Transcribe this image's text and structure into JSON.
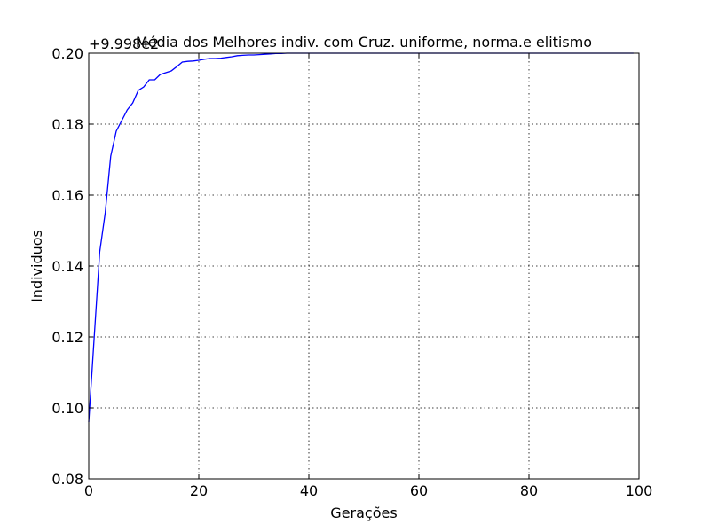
{
  "chart_data": {
    "type": "line",
    "title": "Média dos Melhores indiv. com Cruz. uniforme, norma.e elitismo",
    "xlabel": "Gerações",
    "ylabel": "Individuos",
    "offset_label": "+9.998e2",
    "xlim": [
      0,
      100
    ],
    "ylim": [
      0.08,
      0.2
    ],
    "xticks": [
      0,
      20,
      40,
      60,
      80,
      100
    ],
    "xtick_labels": [
      "0",
      "20",
      "40",
      "60",
      "80",
      "100"
    ],
    "yticks": [
      0.08,
      0.1,
      0.12,
      0.14,
      0.16,
      0.18,
      0.2
    ],
    "ytick_labels": [
      "0.08",
      "0.10",
      "0.12",
      "0.14",
      "0.16",
      "0.18",
      "0.20"
    ],
    "grid": true,
    "color": "#0000ff",
    "series": [
      {
        "x": [
          0,
          1,
          2,
          3,
          4,
          5,
          6,
          7,
          8,
          9,
          10,
          11,
          12,
          13,
          14,
          15,
          16,
          17,
          18,
          19,
          20,
          21,
          22,
          23,
          24,
          25,
          26,
          27,
          28,
          29,
          30,
          31,
          32,
          33,
          34,
          35,
          36,
          37,
          38,
          39,
          40,
          41,
          42,
          43,
          44,
          45,
          46,
          47,
          48,
          49,
          50,
          51,
          52,
          53,
          54,
          55,
          56,
          57,
          58,
          59,
          60,
          61,
          62,
          63,
          64,
          65,
          66,
          67,
          68,
          69,
          70,
          71,
          72,
          73,
          74,
          75,
          76,
          77,
          78,
          79,
          80,
          81,
          82,
          83,
          84,
          85,
          86,
          87,
          88,
          89,
          90,
          91,
          92,
          93,
          94,
          95,
          96,
          97,
          98,
          99
        ],
        "y": [
          0.096,
          0.12,
          0.144,
          0.155,
          0.171,
          0.178,
          0.181,
          0.184,
          0.186,
          0.1895,
          0.1905,
          0.1925,
          0.1925,
          0.194,
          0.1945,
          0.195,
          0.1962,
          0.1975,
          0.1977,
          0.1978,
          0.198,
          0.1983,
          0.1985,
          0.1985,
          0.1986,
          0.1988,
          0.199,
          0.1993,
          0.1994,
          0.1995,
          0.1995,
          0.1996,
          0.1997,
          0.1998,
          0.1999,
          0.1999,
          0.2,
          0.2,
          0.2,
          0.2,
          0.2,
          0.2,
          0.2,
          0.2,
          0.2,
          0.2,
          0.2,
          0.2,
          0.2,
          0.2,
          0.2,
          0.2,
          0.2,
          0.2,
          0.2,
          0.2,
          0.2,
          0.2,
          0.2,
          0.2,
          0.2,
          0.2,
          0.2,
          0.2,
          0.2,
          0.2,
          0.2,
          0.2,
          0.2,
          0.2,
          0.2,
          0.2,
          0.2,
          0.2,
          0.2,
          0.2,
          0.2,
          0.2,
          0.2,
          0.2,
          0.2,
          0.2,
          0.2,
          0.2,
          0.2,
          0.2,
          0.2,
          0.2,
          0.2,
          0.2,
          0.2,
          0.2,
          0.2,
          0.2,
          0.2,
          0.2,
          0.2,
          0.2,
          0.2,
          0.2
        ]
      }
    ]
  }
}
